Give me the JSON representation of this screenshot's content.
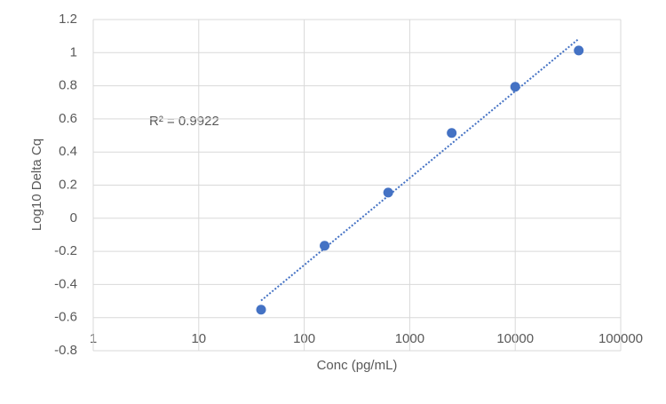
{
  "chart_data": {
    "type": "scatter",
    "x_label": "Conc (pg/mL)",
    "y_label": "Log10 Delta Cq",
    "annotation": "R² = 0.9922",
    "xscale": "log",
    "grid": true,
    "trendline": "linear",
    "xlim": [
      1,
      100000
    ],
    "xticks": [
      1,
      10,
      100,
      1000,
      10000,
      100000
    ],
    "ylim": [
      -0.8,
      1.2
    ],
    "yticks": [
      -0.8,
      -0.6,
      -0.4,
      -0.2,
      0,
      0.2,
      0.4,
      0.6,
      0.8,
      1,
      1.2
    ],
    "series": [
      {
        "color": "#4472c4",
        "x": [
          39,
          156,
          625,
          2500,
          10000,
          40000
        ],
        "values": [
          -0.552,
          -0.166,
          0.155,
          0.515,
          0.794,
          1.013
        ]
      }
    ]
  }
}
